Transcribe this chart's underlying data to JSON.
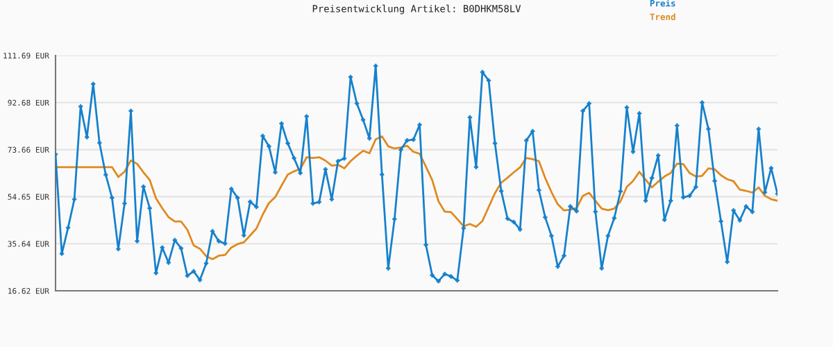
{
  "chart_data": {
    "type": "line",
    "title": "Preisentwicklung Artikel: B0DHKM58LV",
    "categories": [
      null,
      null,
      null,
      null,
      null,
      null,
      null,
      null,
      null,
      null,
      null,
      null,
      null,
      null,
      null,
      null,
      null,
      null,
      null,
      null,
      null,
      null,
      null,
      null,
      null,
      null,
      null,
      null,
      null,
      null,
      null,
      null,
      null,
      null,
      null,
      null,
      null,
      null,
      null,
      null,
      null,
      null,
      null,
      null,
      null,
      null,
      null,
      null,
      null,
      null,
      null,
      null,
      null,
      null,
      null,
      null,
      null,
      null,
      null,
      null,
      null,
      null,
      null,
      null,
      null,
      null,
      null,
      null,
      null,
      null,
      null,
      null,
      null,
      null,
      null,
      null,
      null,
      null,
      null,
      null,
      null,
      null,
      null,
      null,
      null,
      null,
      null,
      null,
      null,
      null,
      null,
      null,
      null,
      null,
      null,
      null,
      null,
      null,
      null,
      null,
      null,
      null,
      null,
      null,
      null,
      null,
      null,
      null,
      null,
      null,
      null,
      null,
      null,
      null,
      null,
      null
    ],
    "series": [
      {
        "name": "Preis",
        "color": "#1581cc",
        "marker": "cross",
        "values": [
          71.8,
          31.6,
          42.1,
          53.6,
          91.1,
          78.7,
          100.2,
          76.4,
          63.5,
          54.2,
          33.5,
          51.9,
          89.3,
          36.7,
          58.7,
          50.0,
          23.8,
          34.1,
          28.0,
          37.1,
          33.8,
          22.7,
          24.5,
          21.0,
          27.7,
          40.7,
          36.7,
          35.7,
          57.8,
          54.2,
          39.0,
          52.6,
          50.5,
          79.2,
          75.0,
          64.5,
          84.2,
          76.2,
          70.2,
          64.2,
          87.1,
          51.9,
          52.5,
          65.7,
          53.6,
          69.0,
          70.1,
          103.0,
          92.3,
          85.7,
          78.2,
          107.5,
          63.6,
          25.7,
          45.6,
          73.6,
          77.4,
          77.7,
          83.7,
          35.2,
          22.9,
          20.5,
          23.4,
          22.4,
          20.8,
          41.9,
          86.7,
          66.6,
          105.0,
          101.6,
          76.2,
          56.9,
          45.8,
          44.4,
          41.4,
          77.4,
          81.1,
          57.3,
          46.3,
          38.8,
          26.4,
          30.8,
          50.7,
          48.8,
          89.3,
          92.3,
          48.6,
          25.7,
          38.8,
          46.0,
          56.8,
          90.7,
          72.8,
          88.3,
          53.0,
          62.2,
          71.3,
          45.3,
          53.0,
          83.4,
          54.4,
          55.0,
          58.6,
          92.7,
          82.0,
          61.0,
          44.7,
          28.3,
          49.1,
          45.1,
          50.7,
          48.5,
          82.0,
          56.4,
          66.2,
          55.8
        ]
      },
      {
        "name": "Trend",
        "color": "#e0891e",
        "marker": "none",
        "values": [
          66.6,
          66.6,
          66.6,
          66.6,
          66.6,
          66.6,
          66.6,
          66.6,
          66.6,
          66.6,
          62.6,
          64.8,
          69.3,
          67.9,
          64.5,
          61.4,
          54.0,
          50.0,
          46.4,
          44.6,
          44.6,
          41.3,
          35.0,
          33.6,
          30.6,
          29.4,
          30.8,
          31.1,
          34.1,
          35.5,
          36.2,
          39.0,
          41.8,
          47.4,
          52.1,
          54.5,
          59.1,
          63.6,
          64.9,
          65.9,
          70.6,
          70.3,
          70.6,
          69.2,
          67.2,
          67.5,
          66.1,
          69.0,
          71.2,
          73.2,
          72.2,
          77.8,
          79.0,
          75.0,
          74.1,
          74.6,
          75.2,
          72.8,
          72.0,
          66.8,
          61.4,
          52.8,
          48.6,
          48.4,
          45.6,
          42.7,
          43.6,
          42.5,
          44.8,
          50.5,
          56.1,
          60.3,
          62.3,
          64.5,
          66.5,
          70.3,
          69.8,
          69.0,
          62.2,
          56.5,
          51.6,
          49.1,
          49.4,
          50.0,
          55.0,
          56.2,
          53.0,
          49.8,
          49.2,
          49.8,
          52.8,
          58.6,
          61.0,
          64.7,
          61.5,
          58.4,
          60.7,
          62.8,
          64.2,
          68.0,
          67.8,
          64.2,
          62.8,
          63.1,
          66.1,
          65.7,
          63.3,
          61.7,
          60.9,
          57.5,
          57.0,
          56.3,
          58.4,
          55.0,
          53.6,
          53.0
        ]
      }
    ],
    "ylim": [
      16.62,
      111.69
    ],
    "yticks": [
      {
        "value": 16.62,
        "label": "16.62 EUR"
      },
      {
        "value": 35.64,
        "label": "35.64 EUR"
      },
      {
        "value": 54.65,
        "label": "54.65 EUR"
      },
      {
        "value": 73.66,
        "label": "73.66 EUR"
      },
      {
        "value": 92.68,
        "label": "92.68 EUR"
      },
      {
        "value": 111.69,
        "label": "111.69 EUR"
      }
    ],
    "grid": "y",
    "legend": "top right",
    "tick_labels": "y"
  }
}
